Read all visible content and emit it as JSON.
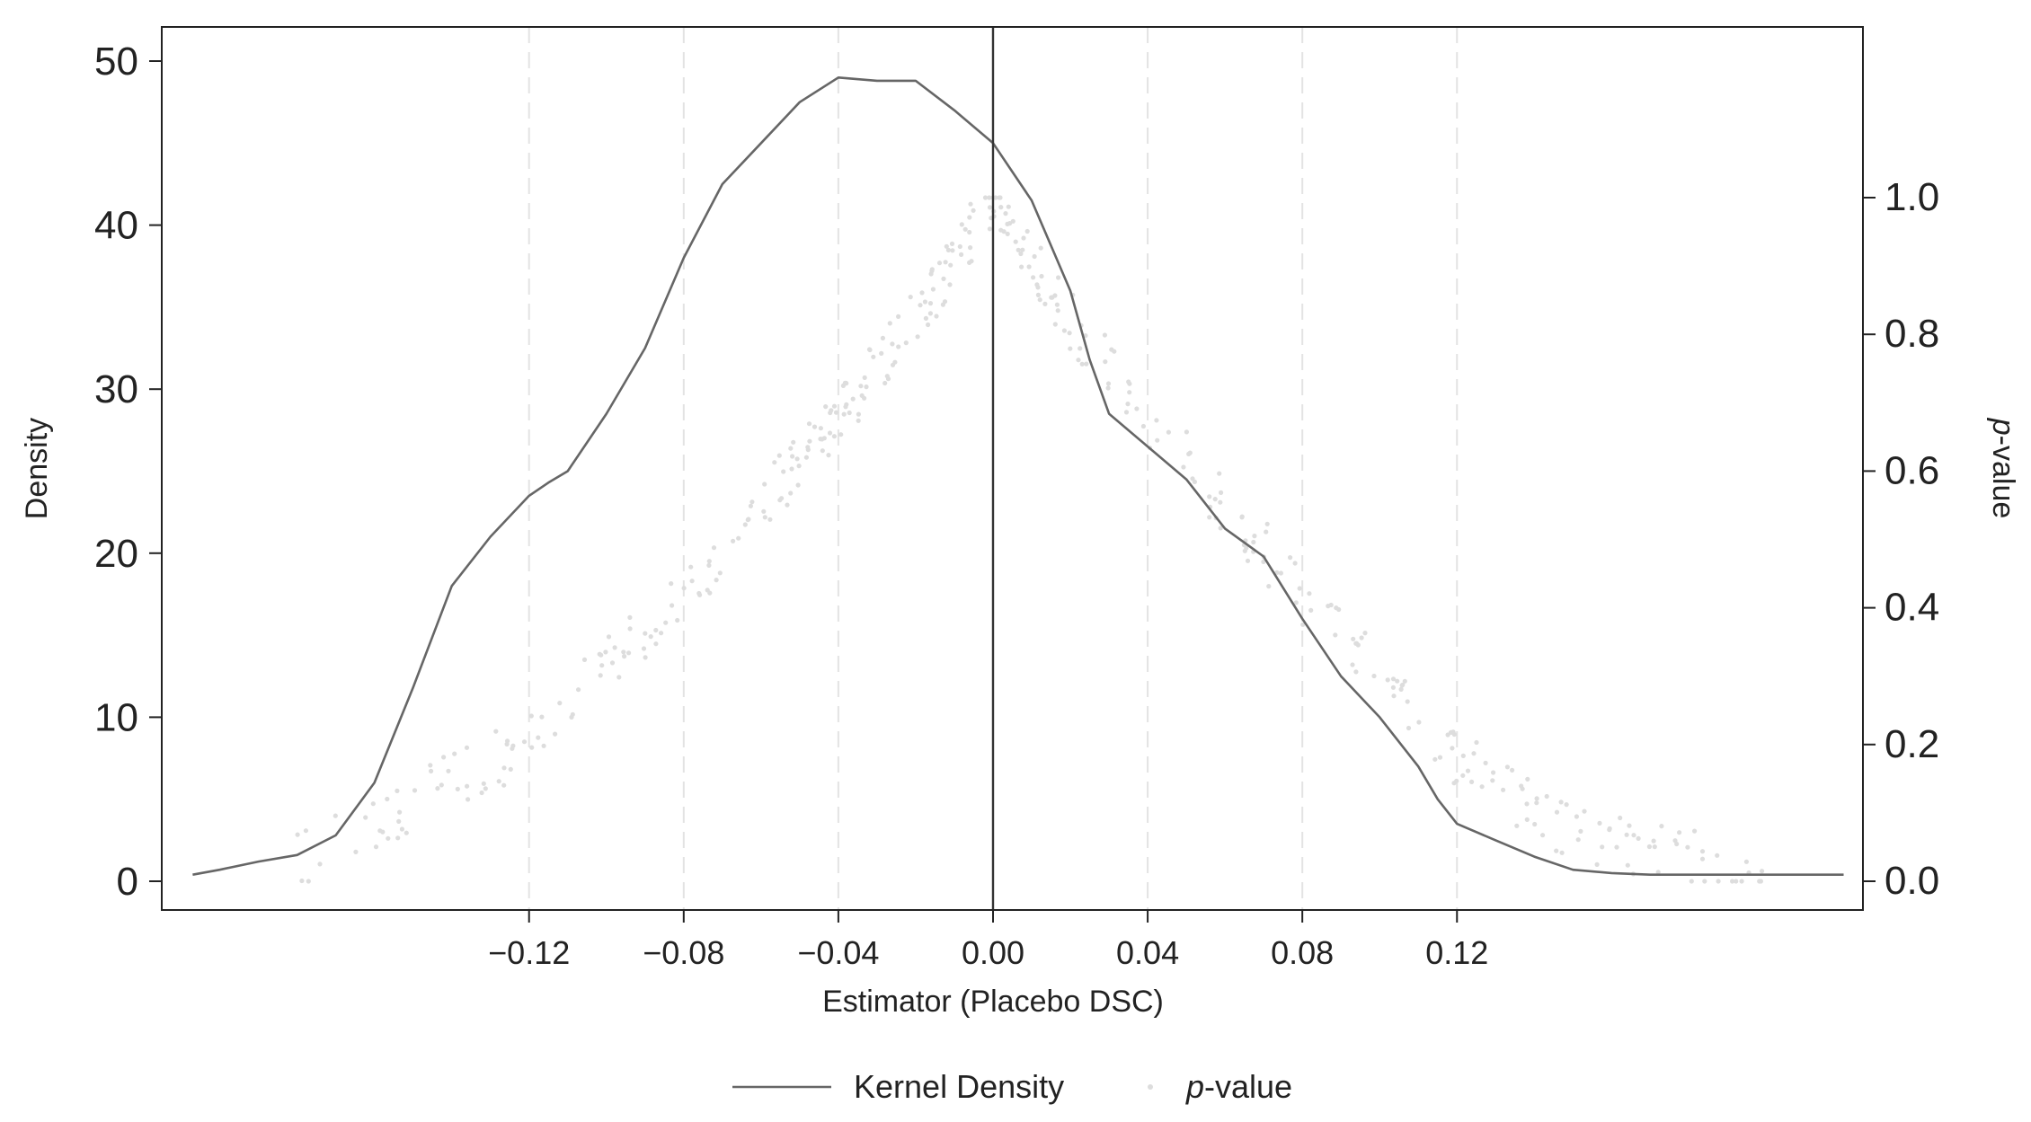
{
  "chart_data": {
    "type": "line",
    "title": "",
    "xlabel": "Estimator (Placebo DSC)",
    "ylabel_left": "Density",
    "ylabel_right_prefix": "p",
    "ylabel_right_suffix": "-value",
    "xlim": [
      -0.215,
      0.225
    ],
    "ylim_left": [
      0,
      50
    ],
    "ylim_right": [
      0,
      1.0
    ],
    "x_ticks": [
      -0.12,
      -0.08,
      -0.04,
      0.0,
      0.04,
      0.08,
      0.12
    ],
    "x_tick_labels": [
      "−0.12",
      "−0.08",
      "−0.04",
      "0.00",
      "0.04",
      "0.08",
      "0.12"
    ],
    "y_left_ticks": [
      0,
      10,
      20,
      30,
      40,
      50
    ],
    "y_left_tick_labels": [
      "0",
      "10",
      "20",
      "30",
      "40",
      "50"
    ],
    "y_right_ticks": [
      0.0,
      0.2,
      0.4,
      0.6,
      0.8,
      1.0
    ],
    "y_right_tick_labels": [
      "0.0",
      "0.2",
      "0.4",
      "0.6",
      "0.8",
      "1.0"
    ],
    "reference_line_x": 0.0,
    "gridlines_at_x_ticks": true,
    "grid_style": "dashed",
    "legend_position": "bottom",
    "legend": [
      {
        "label": "Kernel Density",
        "marker": "line"
      },
      {
        "label_prefix": "p",
        "label_suffix": "-value",
        "marker": "dot"
      }
    ],
    "series": [
      {
        "name": "Kernel Density",
        "kind": "line",
        "axis": "left",
        "color": "#666666",
        "x": [
          -0.207,
          -0.2,
          -0.19,
          -0.18,
          -0.17,
          -0.16,
          -0.15,
          -0.14,
          -0.13,
          -0.12,
          -0.115,
          -0.11,
          -0.1,
          -0.09,
          -0.08,
          -0.07,
          -0.06,
          -0.05,
          -0.04,
          -0.03,
          -0.02,
          -0.01,
          0.0,
          0.01,
          0.02,
          0.025,
          0.03,
          0.04,
          0.05,
          0.06,
          0.07,
          0.08,
          0.09,
          0.1,
          0.11,
          0.115,
          0.12,
          0.13,
          0.14,
          0.15,
          0.16,
          0.17,
          0.18,
          0.19,
          0.2,
          0.21,
          0.22
        ],
        "values": [
          0.4,
          0.7,
          1.2,
          1.6,
          2.8,
          6.0,
          11.8,
          18.0,
          21.0,
          23.5,
          24.3,
          25.0,
          28.5,
          32.5,
          38.0,
          42.5,
          45.0,
          47.5,
          49.0,
          48.8,
          48.8,
          47.0,
          45.0,
          41.5,
          36.0,
          31.8,
          28.5,
          26.5,
          24.5,
          21.5,
          19.8,
          16.0,
          12.5,
          10.0,
          7.0,
          5.0,
          3.5,
          2.5,
          1.5,
          0.7,
          0.5,
          0.4,
          0.4,
          0.4,
          0.4,
          0.4,
          0.4
        ]
      },
      {
        "name": "p-value",
        "kind": "scatter",
        "axis": "right",
        "color": "#dddddd",
        "left_branch": {
          "x_from": -0.18,
          "x_to": 0.0,
          "anchor_x": [
            -0.18,
            -0.15,
            -0.12,
            -0.1,
            -0.08,
            -0.06,
            -0.04,
            -0.02,
            0.0
          ],
          "anchor_values": [
            0.03,
            0.12,
            0.2,
            0.32,
            0.42,
            0.55,
            0.68,
            0.82,
            1.0
          ]
        },
        "right_branch": {
          "x_from": 0.0,
          "x_to": 0.2,
          "anchor_x": [
            0.0,
            0.02,
            0.04,
            0.06,
            0.08,
            0.1,
            0.12,
            0.14,
            0.16,
            0.18,
            0.2
          ],
          "anchor_values": [
            1.0,
            0.82,
            0.68,
            0.55,
            0.42,
            0.3,
            0.18,
            0.1,
            0.06,
            0.03,
            0.01
          ]
        },
        "approx_count": 420
      }
    ]
  }
}
